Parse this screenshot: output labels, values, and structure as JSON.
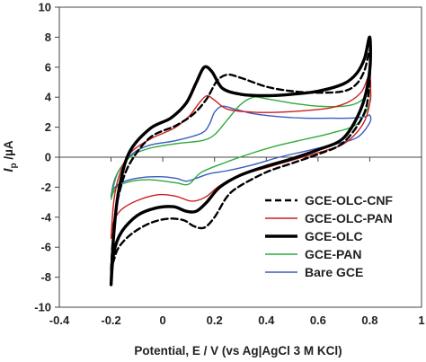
{
  "chart_data": {
    "type": "line",
    "xlabel": "Potential, E / V (vs Ag|AgCl 3 M KCl)",
    "ylabel_main": "I",
    "ylabel_sub": "p",
    "ylabel_unit": " /µA",
    "xlim": [
      -0.4,
      1.0
    ],
    "ylim": [
      -10,
      10
    ],
    "xticks": [
      -0.4,
      -0.2,
      0,
      0.2,
      0.4,
      0.6,
      0.8,
      1.0
    ],
    "xtick_labels": [
      "-0.4",
      "-0.2",
      "0",
      "0.2",
      "0.4",
      "0.6",
      "0.8",
      "1"
    ],
    "yticks": [
      -10,
      -8,
      -6,
      -4,
      -2,
      0,
      2,
      4,
      6,
      8,
      10
    ],
    "ytick_labels": [
      "-10",
      "-8",
      "-6",
      "-4",
      "-2",
      "0",
      "2",
      "4",
      "6",
      "8",
      "10"
    ],
    "grid": false,
    "legend_position": "bottom-right",
    "series": [
      {
        "name": "GCE-OLC-CNF",
        "color": "#000000",
        "style": "dashed",
        "x": [
          -0.2,
          -0.19,
          -0.17,
          -0.13,
          -0.05,
          0.05,
          0.12,
          0.17,
          0.21,
          0.25,
          0.3,
          0.4,
          0.5,
          0.6,
          0.7,
          0.75,
          0.78,
          0.8,
          0.8,
          0.78,
          0.7,
          0.6,
          0.5,
          0.4,
          0.3,
          0.25,
          0.2,
          0.16,
          0.12,
          0.08,
          0.02,
          -0.05,
          -0.12,
          -0.17,
          -0.19,
          -0.2
        ],
        "y": [
          -7.5,
          -4.8,
          -2.5,
          -0.5,
          1.3,
          2.1,
          2.9,
          3.9,
          5.1,
          5.5,
          5.3,
          4.7,
          4.4,
          4.3,
          4.4,
          4.9,
          5.8,
          7.1,
          5.3,
          3.0,
          1.0,
          0.2,
          -0.4,
          -1.0,
          -1.9,
          -2.6,
          -4.0,
          -4.7,
          -4.6,
          -4.2,
          -4.1,
          -4.4,
          -5.1,
          -6.0,
          -6.9,
          -7.5
        ]
      },
      {
        "name": "GCE-OLC-PAN",
        "color": "#cc1f1f",
        "style": "solid",
        "x": [
          -0.2,
          -0.19,
          -0.17,
          -0.13,
          -0.05,
          0.04,
          0.1,
          0.14,
          0.17,
          0.2,
          0.25,
          0.35,
          0.45,
          0.55,
          0.65,
          0.72,
          0.77,
          0.8,
          0.8,
          0.77,
          0.7,
          0.6,
          0.5,
          0.4,
          0.3,
          0.22,
          0.17,
          0.13,
          0.1,
          0.05,
          -0.02,
          -0.1,
          -0.16,
          -0.19,
          -0.2
        ],
        "y": [
          -5.4,
          -3.0,
          -1.3,
          0.2,
          1.2,
          1.9,
          2.7,
          3.6,
          4.1,
          3.8,
          3.2,
          3.0,
          3.0,
          3.1,
          3.3,
          3.7,
          4.4,
          5.5,
          3.6,
          2.1,
          0.9,
          0.3,
          -0.2,
          -0.7,
          -1.2,
          -1.9,
          -2.6,
          -2.9,
          -2.9,
          -2.6,
          -2.5,
          -2.9,
          -3.5,
          -4.3,
          -5.4
        ]
      },
      {
        "name": "GCE-OLC",
        "color": "#000000",
        "style": "thick",
        "x": [
          -0.2,
          -0.19,
          -0.17,
          -0.13,
          -0.05,
          0.03,
          0.09,
          0.13,
          0.16,
          0.19,
          0.23,
          0.3,
          0.4,
          0.5,
          0.6,
          0.7,
          0.75,
          0.78,
          0.8,
          0.8,
          0.77,
          0.7,
          0.6,
          0.5,
          0.4,
          0.3,
          0.22,
          0.17,
          0.13,
          0.09,
          0.04,
          -0.03,
          -0.1,
          -0.16,
          -0.19,
          -0.2
        ],
        "y": [
          -8.5,
          -5.2,
          -2.2,
          0.3,
          1.9,
          2.6,
          3.6,
          5.0,
          6.0,
          5.7,
          4.6,
          4.2,
          4.1,
          4.2,
          4.4,
          4.9,
          5.6,
          6.6,
          8.0,
          5.8,
          3.4,
          1.3,
          0.5,
          -0.1,
          -0.6,
          -1.2,
          -2.0,
          -3.0,
          -3.6,
          -3.6,
          -3.3,
          -3.4,
          -3.9,
          -5.0,
          -6.4,
          -8.5
        ]
      },
      {
        "name": "GCE-PAN",
        "color": "#2eaa3a",
        "style": "solid",
        "x": [
          -0.2,
          -0.19,
          -0.17,
          -0.12,
          -0.05,
          0.05,
          0.15,
          0.2,
          0.25,
          0.3,
          0.35,
          0.4,
          0.5,
          0.6,
          0.7,
          0.75,
          0.78,
          0.8,
          0.8,
          0.75,
          0.65,
          0.55,
          0.45,
          0.35,
          0.25,
          0.15,
          0.1,
          0.05,
          -0.05,
          -0.12,
          -0.17,
          -0.19,
          -0.2
        ],
        "y": [
          -2.8,
          -1.9,
          -0.9,
          0.1,
          0.6,
          0.9,
          1.1,
          1.5,
          2.5,
          3.5,
          4.0,
          3.9,
          3.6,
          3.4,
          3.4,
          3.6,
          4.0,
          4.7,
          3.6,
          2.2,
          1.6,
          1.2,
          0.8,
          0.3,
          -0.3,
          -1.0,
          -1.8,
          -1.7,
          -1.5,
          -1.6,
          -1.9,
          -2.3,
          -2.8
        ]
      },
      {
        "name": "Bare GCE",
        "color": "#3a5bbf",
        "style": "solid",
        "x": [
          -0.2,
          -0.19,
          -0.17,
          -0.12,
          -0.05,
          0.05,
          0.15,
          0.18,
          0.2,
          0.23,
          0.28,
          0.35,
          0.45,
          0.55,
          0.65,
          0.72,
          0.78,
          0.8,
          0.8,
          0.75,
          0.65,
          0.55,
          0.45,
          0.35,
          0.25,
          0.18,
          0.13,
          0.09,
          0.05,
          -0.02,
          -0.1,
          -0.16,
          -0.19,
          -0.2
        ],
        "y": [
          -2.6,
          -1.7,
          -0.9,
          0.2,
          0.8,
          1.1,
          1.6,
          2.2,
          3.0,
          3.4,
          3.2,
          2.9,
          2.7,
          2.6,
          2.6,
          2.6,
          2.7,
          2.8,
          2.3,
          1.3,
          0.8,
          0.4,
          0.0,
          -0.5,
          -0.9,
          -1.1,
          -1.4,
          -1.6,
          -1.4,
          -1.3,
          -1.4,
          -1.7,
          -2.1,
          -2.6
        ]
      }
    ]
  }
}
